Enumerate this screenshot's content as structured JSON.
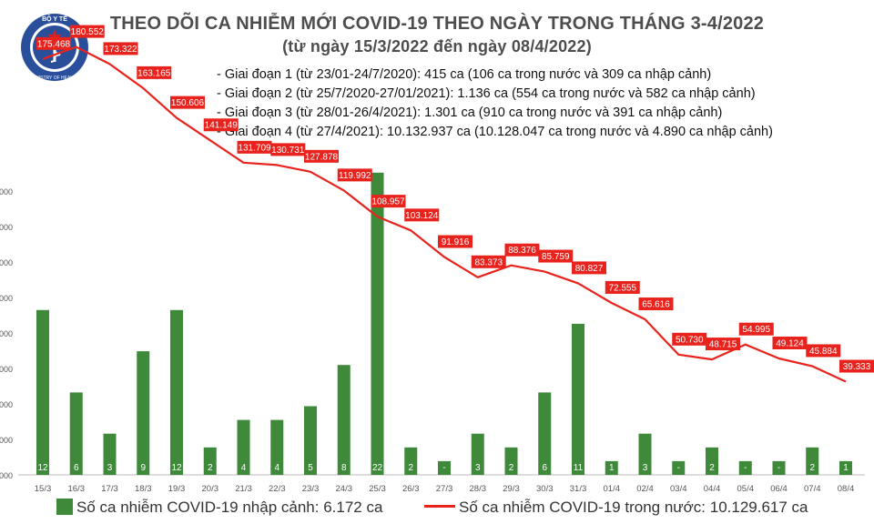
{
  "header": {
    "title": "THEO DÕI CA NHIỄM MỚI COVID-19 THEO NGÀY TRONG THÁNG 3-4/2022",
    "subtitle": "(từ ngày 15/3/2022 đến ngày 08/4/2022)",
    "logo_text_top": "BỘ Y TẾ",
    "logo_text_bottom": "MINISTRY OF HEALTH",
    "phases": [
      "- Giai đoạn 1 (từ 23/01-24/7/2020): 415 ca (106 ca trong nước và 309 ca nhập cảnh)",
      "- Giai đoạn 2 (từ 25/7/2020-27/01/2021): 1.136 ca (554 ca trong nước và 582 ca nhập cảnh)",
      "- Giai đoạn 3 (từ 28/01-26/4/2021): 1.301 ca (910 ca trong nước và 391 ca nhập cảnh)",
      "- Giai đoạn 4 (từ 27/4/2021): 10.132.937 ca (10.128.047 ca trong nước và 4.890 ca nhập cảnh)"
    ]
  },
  "colors": {
    "bar": "#3f8a3a",
    "line": "#e8231d",
    "label_bg": "#e8231d",
    "label_text": "#ffffff",
    "axis_text": "#555555",
    "logo": "#2a4f9a"
  },
  "legend": {
    "bar_label": "Số ca nhiễm COVID-19 nhập cảnh: 6.172 ca",
    "line_label": "Số ca nhiễm COVID-19 trong nước: 10.129.617 ca"
  },
  "chart_data": {
    "type": "bar+line",
    "categories": [
      "15/3",
      "16/3",
      "17/3",
      "18/3",
      "19/3",
      "20/3",
      "21/3",
      "22/3",
      "23/3",
      "24/3",
      "25/3",
      "26/3",
      "27/3",
      "28/3",
      "29/3",
      "30/3",
      "31/3",
      "01/4",
      "02/4",
      "03/4",
      "04/4",
      "05/4",
      "06/4",
      "07/4",
      "08/4"
    ],
    "series": [
      {
        "name": "Số ca nhiễm COVID-19 nhập cảnh: 6.172 ca",
        "type": "bar",
        "values": [
          12,
          6,
          3,
          9,
          12,
          2,
          4,
          4,
          5,
          8,
          22,
          2,
          0,
          3,
          2,
          6,
          11,
          1,
          3,
          0,
          2,
          0,
          0,
          2,
          1
        ],
        "labels": [
          "12",
          "6",
          "3",
          "9",
          "12",
          "2",
          "4",
          "4",
          "5",
          "8",
          "22",
          "2",
          "-",
          "3",
          "2",
          "6",
          "11",
          "1",
          "3",
          "-",
          "2",
          "-",
          "-",
          "2",
          "1"
        ],
        "display_height": [
          12,
          6,
          3,
          9,
          12,
          2,
          4,
          4,
          5,
          8,
          22,
          2,
          1,
          3,
          2,
          6,
          11,
          1,
          3,
          1,
          2,
          1,
          1,
          2,
          1
        ]
      },
      {
        "name": "Số ca nhiễm COVID-19 trong nước: 10.129.617 ca",
        "type": "line",
        "values": [
          175468,
          180552,
          173322,
          163165,
          150606,
          141149,
          131709,
          130731,
          127878,
          119992,
          108957,
          103124,
          91916,
          83373,
          88376,
          85759,
          80827,
          72555,
          65616,
          50730,
          48715,
          54995,
          49124,
          45884,
          39333
        ],
        "labels": [
          "175.468",
          "180.552",
          "173.322",
          "163.165",
          "150.606",
          "141.149",
          "131.709",
          "130.731",
          "127.878",
          "119.992",
          "108.957",
          "103.124",
          "91.916",
          "83.373",
          "88.376",
          "85.759",
          "80.827",
          "72.555",
          "65.616",
          "50.730",
          "48.715",
          "54.995",
          "49.124",
          "45.884",
          "39.333"
        ]
      }
    ],
    "y_axis_left_ticks": [
      ".000",
      ".000",
      ".000",
      ".000",
      ".000",
      ".000",
      ".000",
      ".000",
      ".000"
    ],
    "ylim_line": [
      0,
      185000
    ],
    "ylim_bar": [
      0,
      24
    ],
    "grid": false,
    "legend_position": "bottom"
  }
}
